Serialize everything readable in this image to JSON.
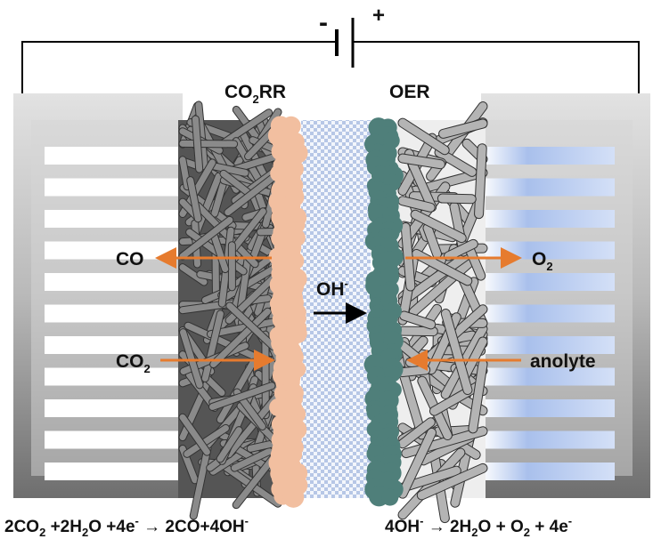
{
  "battery": {
    "negative": "-",
    "positive": "+"
  },
  "layers": {
    "cathode_reaction": [
      "CO",
      "2",
      "RR"
    ],
    "anode_reaction": "OER"
  },
  "species": {
    "product_cathode": "CO",
    "feed_cathode": [
      "CO",
      "2"
    ],
    "ion": [
      "OH",
      "-"
    ],
    "product_anode": [
      "O",
      "2"
    ],
    "feed_anode": "anolyte"
  },
  "equations": {
    "cathode": [
      "2CO",
      "2",
      " +2H",
      "2",
      "O +4e",
      "-",
      " → 2CO+4OH",
      "-"
    ],
    "anode": [
      "4OH",
      "-",
      " → 2H",
      "2",
      "O + O",
      "2",
      " + 4e",
      "-"
    ]
  }
}
